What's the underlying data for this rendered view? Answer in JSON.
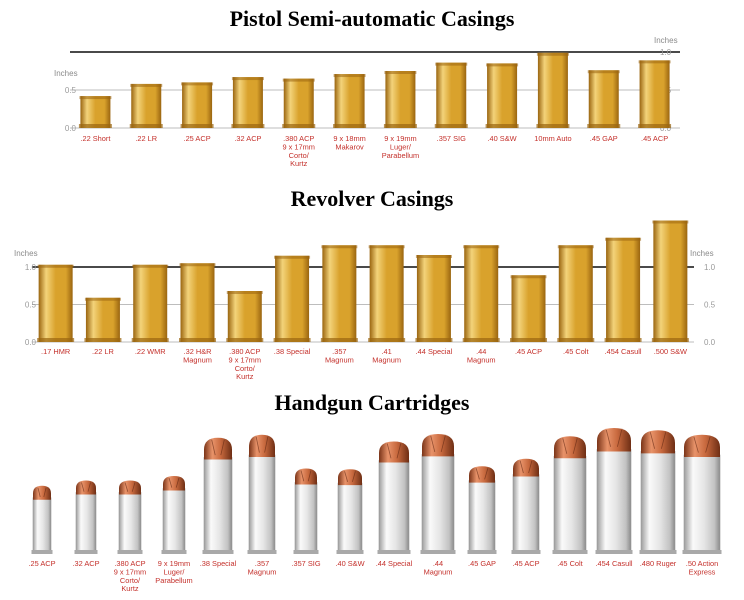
{
  "colors": {
    "casing_mid": "#d9a22c",
    "casing_light": "#f3d37a",
    "casing_dark": "#9a6510",
    "label": "#c4302b",
    "axis_text": "#9a9a9a",
    "gridline": "#555555",
    "bullet_copper": "#c8693e",
    "case_silver": "#e6e6e6"
  },
  "chart_data": [
    {
      "type": "bar",
      "title": "Pistol Semi-automatic Casings",
      "unit_label_left": "Inches",
      "unit_label_right": "Inches",
      "ylim": [
        0,
        1.0
      ],
      "ticks_left": [
        "0.5",
        "0.0"
      ],
      "ticks_right": [
        "1.0",
        "0.5",
        "0.0"
      ],
      "categories": [
        [
          ".22 Short"
        ],
        [
          ".22 LR"
        ],
        [
          ".25 ACP"
        ],
        [
          ".32 ACP"
        ],
        [
          ".380 ACP",
          "9 x 17mm",
          "Corto/",
          "Kurtz"
        ],
        [
          "9 x 18mm",
          "Makarov"
        ],
        [
          "9 x 19mm",
          "Luger/",
          "Parabellum"
        ],
        [
          ".357 SIG"
        ],
        [
          ".40 S&W"
        ],
        [
          "10mm Auto"
        ],
        [
          ".45 GAP"
        ],
        [
          ".45 ACP"
        ]
      ],
      "values": [
        0.42,
        0.58,
        0.6,
        0.67,
        0.65,
        0.71,
        0.75,
        0.86,
        0.85,
        0.99,
        0.76,
        0.89
      ]
    },
    {
      "type": "bar",
      "title": "Revolver Casings",
      "unit_label_left": "Inches",
      "unit_label_right": "Inches",
      "ylim": [
        0,
        1.0
      ],
      "ticks_left": [
        "1.0",
        "0.5",
        "0.0"
      ],
      "ticks_right": [
        "1.0",
        "0.5",
        "0.0"
      ],
      "categories": [
        [
          ".17 HMR"
        ],
        [
          ".22 LR"
        ],
        [
          ".22 WMR"
        ],
        [
          ".32 H&R",
          "Magnum"
        ],
        [
          ".380 ACP",
          "9 x 17mm",
          "Corto/",
          "Kurtz"
        ],
        [
          ".38 Special"
        ],
        [
          ".357",
          "Magnum"
        ],
        [
          ".41",
          "Magnum"
        ],
        [
          ".44 Special"
        ],
        [
          ".44",
          "Magnum"
        ],
        [
          ".45 ACP"
        ],
        [
          ".45 Colt"
        ],
        [
          ".454 Casull"
        ],
        [
          ".500 S&W"
        ]
      ],
      "values": [
        1.03,
        0.59,
        1.03,
        1.05,
        0.68,
        1.15,
        1.29,
        1.29,
        1.16,
        1.29,
        0.89,
        1.29,
        1.39,
        1.62
      ]
    },
    {
      "type": "bar",
      "title": "Handgun Cartridges",
      "categories": [
        [
          ".25 ACP"
        ],
        [
          ".32 ACP"
        ],
        [
          ".380 ACP",
          "9 x 17mm",
          "Corto/",
          "Kurtz"
        ],
        [
          "9 x 19mm",
          "Luger/",
          "Parabellum"
        ],
        [
          ".38 Special"
        ],
        [
          ".357",
          "Magnum"
        ],
        [
          ".357 SIG"
        ],
        [
          ".40 S&W"
        ],
        [
          ".44 Special"
        ],
        [
          ".44",
          "Magnum"
        ],
        [
          ".45 GAP"
        ],
        [
          ".45 ACP"
        ],
        [
          ".45 Colt"
        ],
        [
          ".454 Casull"
        ],
        [
          ".480 Ruger"
        ],
        [
          ".50 Action",
          "Express"
        ]
      ],
      "values": [
        0.91,
        0.98,
        0.98,
        1.04,
        1.55,
        1.59,
        1.14,
        1.13,
        1.5,
        1.6,
        1.17,
        1.27,
        1.57,
        1.68,
        1.65,
        1.59
      ]
    }
  ]
}
